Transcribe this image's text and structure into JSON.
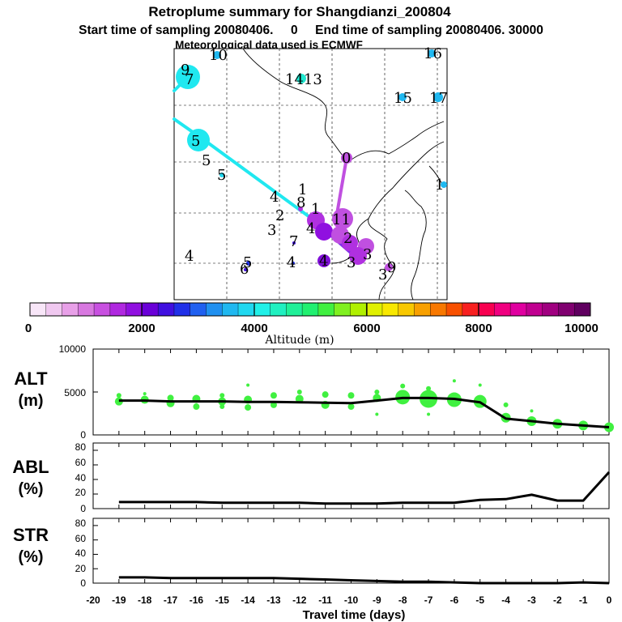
{
  "header": {
    "title": "Retroplume summary for Shangdianzi_200804",
    "sampling": "Start time of sampling 20080406.     0     End time of sampling 20080406. 30000",
    "met": "Meteorological data used is ECMWF"
  },
  "colorbar": {
    "ticks": [
      "0",
      "2000",
      "4000",
      "6000",
      "8000",
      "10000"
    ],
    "label": "Altitude (m)",
    "colors": [
      "#f8e6f8",
      "#f0c8f0",
      "#e8a0e8",
      "#d878e0",
      "#c850e0",
      "#b028e0",
      "#9010e0",
      "#6a00d8",
      "#4010e0",
      "#2030e8",
      "#2060f0",
      "#2090f0",
      "#20b8f0",
      "#20d8f0",
      "#20f0e8",
      "#20f0c0",
      "#20f098",
      "#20f070",
      "#40f040",
      "#80f020",
      "#b0f000",
      "#e0f000",
      "#f8e800",
      "#f8c800",
      "#f8a000",
      "#f87800",
      "#f85000",
      "#f82020",
      "#f80050",
      "#f00080",
      "#e000a0",
      "#c00090",
      "#a00080",
      "#800070",
      "#600060"
    ]
  },
  "map_labels": [
    "9",
    "7",
    "10",
    "16",
    "1413",
    "15",
    "17",
    "5",
    "5",
    "5",
    "1",
    "4",
    "8",
    "1",
    "2",
    "11",
    "3",
    "4",
    "7",
    "2",
    "4",
    "5",
    "6",
    "4",
    "4",
    "3",
    "3",
    "3",
    "9",
    "0",
    "1"
  ],
  "chart_data": [
    {
      "type": "line",
      "panel": "ALT",
      "ylabel": "ALT",
      "yunits": "(m)",
      "ylim": [
        0,
        10000
      ],
      "yticks": [
        "10000",
        "5000",
        "0"
      ],
      "x": [
        -19,
        -18,
        -17,
        -16,
        -15,
        -14,
        -13,
        -12,
        -11,
        -10,
        -9,
        -8,
        -7,
        -6,
        -5,
        -4,
        -3,
        -2,
        -1,
        0
      ],
      "values": [
        4000,
        4000,
        3900,
        3900,
        3900,
        3850,
        3850,
        3800,
        3750,
        3700,
        4000,
        4300,
        4300,
        4200,
        3800,
        1900,
        1600,
        1300,
        1100,
        900
      ],
      "scatter": [
        {
          "x": -19,
          "y": 4600,
          "r": 3
        },
        {
          "x": -19,
          "y": 3900,
          "r": 5
        },
        {
          "x": -18,
          "y": 4100,
          "r": 5
        },
        {
          "x": -18,
          "y": 4800,
          "r": 2
        },
        {
          "x": -17,
          "y": 3700,
          "r": 5
        },
        {
          "x": -17,
          "y": 4300,
          "r": 4
        },
        {
          "x": -16,
          "y": 4200,
          "r": 5
        },
        {
          "x": -16,
          "y": 3300,
          "r": 4
        },
        {
          "x": -15,
          "y": 3900,
          "r": 5
        },
        {
          "x": -15,
          "y": 4600,
          "r": 3
        },
        {
          "x": -15,
          "y": 3300,
          "r": 3
        },
        {
          "x": -14,
          "y": 4100,
          "r": 5
        },
        {
          "x": -14,
          "y": 3200,
          "r": 4
        },
        {
          "x": -14,
          "y": 5800,
          "r": 2
        },
        {
          "x": -13,
          "y": 4600,
          "r": 4
        },
        {
          "x": -13,
          "y": 3500,
          "r": 4
        },
        {
          "x": -12,
          "y": 4200,
          "r": 5
        },
        {
          "x": -12,
          "y": 5000,
          "r": 3
        },
        {
          "x": -11,
          "y": 3500,
          "r": 5
        },
        {
          "x": -11,
          "y": 4700,
          "r": 4
        },
        {
          "x": -10,
          "y": 4600,
          "r": 4
        },
        {
          "x": -10,
          "y": 3300,
          "r": 4
        },
        {
          "x": -9,
          "y": 4300,
          "r": 5
        },
        {
          "x": -9,
          "y": 5000,
          "r": 3
        },
        {
          "x": -9,
          "y": 2400,
          "r": 2
        },
        {
          "x": -8,
          "y": 4400,
          "r": 9
        },
        {
          "x": -8,
          "y": 5700,
          "r": 3
        },
        {
          "x": -7,
          "y": 4200,
          "r": 11
        },
        {
          "x": -7,
          "y": 5400,
          "r": 3
        },
        {
          "x": -7,
          "y": 2400,
          "r": 2
        },
        {
          "x": -6,
          "y": 4100,
          "r": 9
        },
        {
          "x": -6,
          "y": 6300,
          "r": 2
        },
        {
          "x": -5,
          "y": 3900,
          "r": 8
        },
        {
          "x": -5,
          "y": 5800,
          "r": 2
        },
        {
          "x": -4,
          "y": 2000,
          "r": 6
        },
        {
          "x": -4,
          "y": 3500,
          "r": 3
        },
        {
          "x": -3,
          "y": 1600,
          "r": 6
        },
        {
          "x": -3,
          "y": 2800,
          "r": 2
        },
        {
          "x": -2,
          "y": 1300,
          "r": 6
        },
        {
          "x": -1,
          "y": 1100,
          "r": 6
        },
        {
          "x": 0,
          "y": 900,
          "r": 6
        }
      ]
    },
    {
      "type": "line",
      "panel": "ABL",
      "ylabel": "ABL",
      "yunits": "(%)",
      "ylim": [
        0,
        90
      ],
      "yticks": [
        "80",
        "60",
        "40",
        "20",
        "0"
      ],
      "x": [
        -19,
        -18,
        -17,
        -16,
        -15,
        -14,
        -13,
        -12,
        -11,
        -10,
        -9,
        -8,
        -7,
        -6,
        -5,
        -4,
        -3,
        -2,
        -1,
        0
      ],
      "values": [
        9,
        9,
        9,
        9,
        8,
        8,
        8,
        8,
        7,
        7,
        7,
        8,
        8,
        8,
        12,
        13,
        19,
        11,
        11,
        50
      ]
    },
    {
      "type": "line",
      "panel": "STR",
      "ylabel": "STR",
      "yunits": "(%)",
      "ylim": [
        0,
        90
      ],
      "yticks": [
        "80",
        "60",
        "40",
        "20",
        "0"
      ],
      "x": [
        -19,
        -18,
        -17,
        -16,
        -15,
        -14,
        -13,
        -12,
        -11,
        -10,
        -9,
        -8,
        -7,
        -6,
        -5,
        -4,
        -3,
        -2,
        -1,
        0
      ],
      "values": [
        8,
        8,
        7,
        7,
        7,
        7,
        7,
        6,
        5,
        4,
        3,
        2,
        2,
        1,
        0,
        0,
        0,
        0,
        1,
        0
      ]
    }
  ],
  "xaxis": {
    "label": "Travel time (days)",
    "ticks": [
      "-20",
      "-19",
      "-18",
      "-17",
      "-16",
      "-15",
      "-14",
      "-13",
      "-12",
      "-11",
      "-10",
      "-9",
      "-8",
      "-7",
      "-6",
      "-5",
      "-4",
      "-3",
      "-2",
      "-1",
      "0"
    ]
  }
}
